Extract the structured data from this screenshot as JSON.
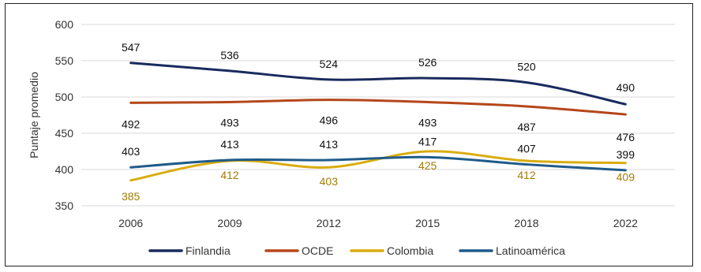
{
  "chart_data": {
    "type": "line",
    "title": "",
    "xlabel": "",
    "ylabel": "Puntaje promedio",
    "categories": [
      "2006",
      "2009",
      "2012",
      "2015",
      "2018",
      "2022"
    ],
    "ylim": [
      350,
      600
    ],
    "yticks": [
      350,
      400,
      450,
      500,
      550,
      600
    ],
    "grid": true,
    "legend": "bottom",
    "series": [
      {
        "name": "Finlandia",
        "color": "#1a2a5e",
        "values": [
          547,
          536,
          524,
          526,
          520,
          490
        ],
        "labels": [
          "547",
          "536",
          "524",
          "526",
          "520",
          "490"
        ],
        "label_color": "#111111"
      },
      {
        "name": "OCDE",
        "color": "#b5471b",
        "values": [
          492,
          493,
          496,
          493,
          487,
          476
        ],
        "labels": [
          "492",
          "493",
          "496",
          "493",
          "487",
          "476"
        ],
        "label_color": "#111111"
      },
      {
        "name": "Colombia",
        "color": "#d9ac0f",
        "values": [
          385,
          412,
          403,
          425,
          412,
          409
        ],
        "labels": [
          "385",
          "412",
          "403",
          "425",
          "412",
          "409"
        ],
        "label_color": "#a07d05"
      },
      {
        "name": "Latinoamérica",
        "color": "#1f5b8a",
        "values": [
          403,
          413,
          413,
          417,
          407,
          399
        ],
        "labels": [
          "403",
          "413",
          "413",
          "417",
          "407",
          "399"
        ],
        "label_color": "#111111"
      }
    ]
  }
}
